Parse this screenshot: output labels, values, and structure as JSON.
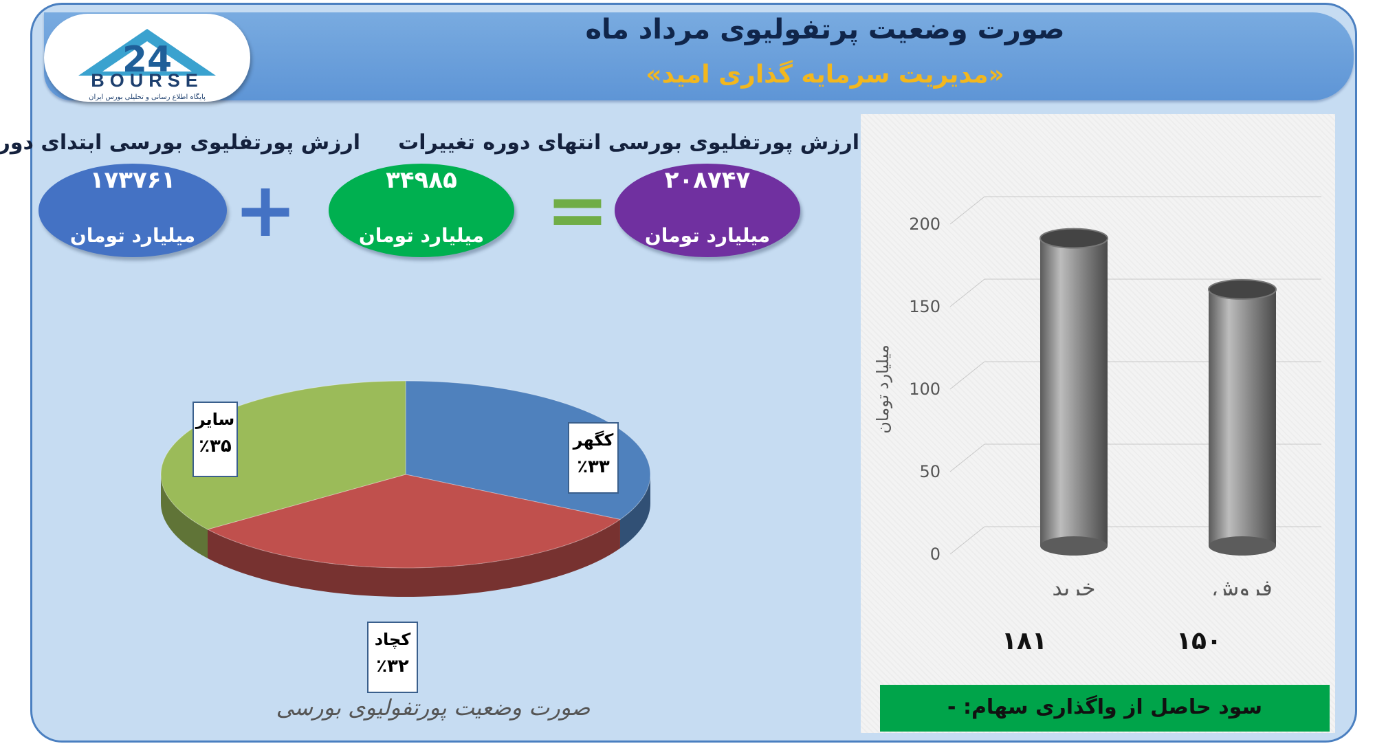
{
  "header": {
    "title": "صورت وضعیت پرتفولیوی مرداد ماه",
    "subtitle": "«مدیریت سرمایه گذاری امید»"
  },
  "logo": {
    "text": "BOURSE",
    "mark": "24",
    "caption": "پایگاه اطلاع رسانی و تحلیلی بورس ایران"
  },
  "summary": {
    "start": {
      "label": "ارزش پورتفلیوی بورسی ابتدای دوره",
      "value": "۱۷۳۷۶۱",
      "unit": "میلیارد تومان",
      "color": "#4472c4"
    },
    "change": {
      "label": "تغییرات",
      "value": "۳۴۹۸۵",
      "unit": "میلیارد تومان",
      "color": "#00b050"
    },
    "end": {
      "label": "ارزش پورتفلیوی بورسی انتهای دوره",
      "value": "۲۰۸۷۴۷",
      "unit": "میلیارد تومان",
      "color": "#7030a0"
    },
    "plus_color": "#4472c4",
    "equals_color": "#70ad47"
  },
  "profit_box": {
    "text": "سود حاصل از واگذاری سهام: -"
  },
  "chart_data": [
    {
      "type": "bar",
      "categories": [
        "خرید",
        "فروش"
      ],
      "values": [
        181,
        150
      ],
      "value_labels": [
        "۱۸۱",
        "۱۵۰"
      ],
      "ylabel": "میلیارد تومان",
      "ylim": [
        0,
        200
      ],
      "yticks": [
        0,
        50,
        100,
        150,
        200
      ],
      "grid": true,
      "color": "#7a7a7a"
    },
    {
      "type": "pie",
      "title": "صورت وضعیت پورتفولیوی بورسی",
      "slices": [
        {
          "name": "کگهر",
          "value": 33,
          "label": "٪۳۳",
          "color": "#4f81bd"
        },
        {
          "name": "کچاد",
          "value": 32,
          "label": "٪۳۲",
          "color": "#c0504d"
        },
        {
          "name": "سایر",
          "value": 35,
          "label": "٪۳۵",
          "color": "#9bbb59"
        }
      ]
    }
  ]
}
